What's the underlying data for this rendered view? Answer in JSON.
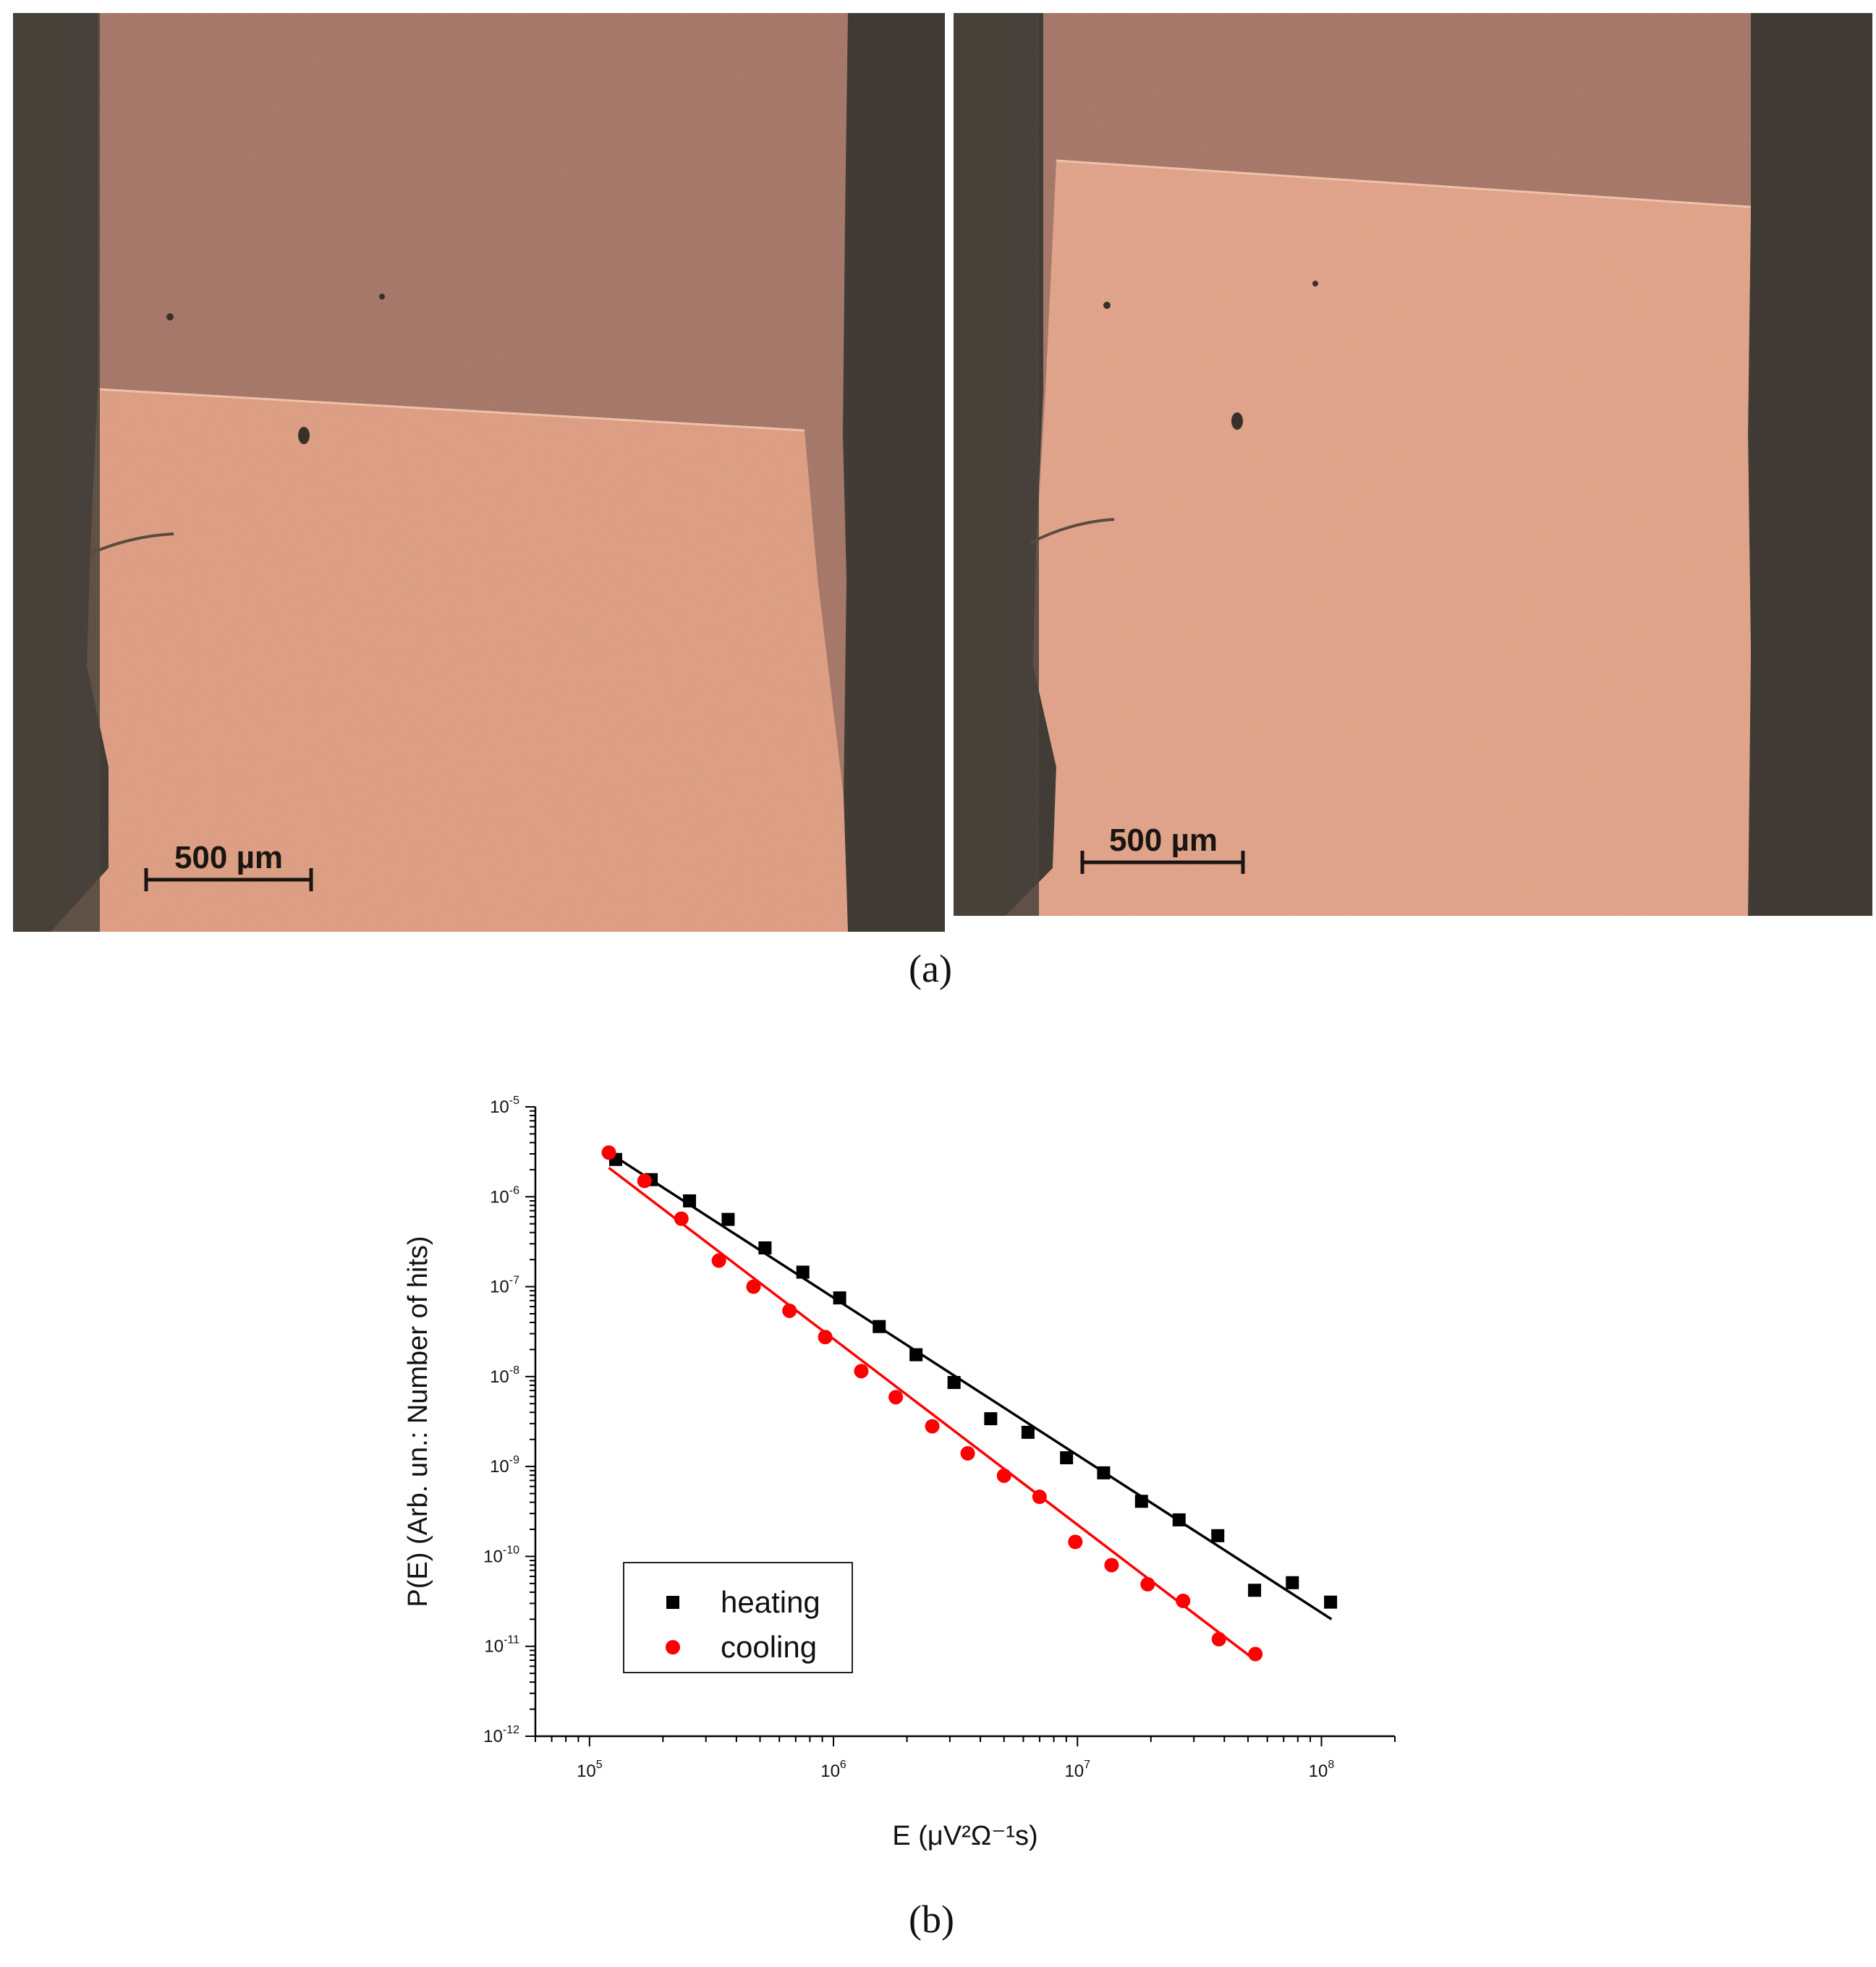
{
  "figure": {
    "panel_a_label": "(a)",
    "panel_b_label": "(b)"
  },
  "micrographs": [
    {
      "scale_bar_label": "500 µm"
    },
    {
      "scale_bar_label": "500 µm"
    }
  ],
  "colors": {
    "heating": "#000000",
    "cooling": "#ff0000",
    "sample_light": "#e2a085",
    "sample_dark": "#ab7d70",
    "background": "#4a433c"
  },
  "chart_data": {
    "type": "scatter",
    "xscale": "log",
    "yscale": "log",
    "xlabel": "E (μV²Ω⁻¹s)",
    "ylabel": "P(E) (Arb. un.: Number of hits)",
    "xlim": [
      60000,
      200000000
    ],
    "ylim": [
      1e-12,
      1e-05
    ],
    "x_ticks": [
      {
        "value": 100000,
        "base": "10",
        "exp": "5"
      },
      {
        "value": 1000000,
        "base": "10",
        "exp": "6"
      },
      {
        "value": 10000000,
        "base": "10",
        "exp": "7"
      },
      {
        "value": 100000000,
        "base": "10",
        "exp": "8"
      }
    ],
    "y_ticks": [
      {
        "value": 1e-05,
        "base": "10",
        "exp": "-5"
      },
      {
        "value": 1e-06,
        "base": "10",
        "exp": "-6"
      },
      {
        "value": 1e-07,
        "base": "10",
        "exp": "-7"
      },
      {
        "value": 1e-08,
        "base": "10",
        "exp": "-8"
      },
      {
        "value": 1e-09,
        "base": "10",
        "exp": "-9"
      },
      {
        "value": 1e-10,
        "base": "10",
        "exp": "-10"
      },
      {
        "value": 1e-11,
        "base": "10",
        "exp": "-11"
      },
      {
        "value": 1e-12,
        "base": "10",
        "exp": "-12"
      }
    ],
    "legend_position": "lower-left",
    "series": [
      {
        "name": "heating",
        "marker": "square",
        "color": "#000000",
        "x": [
          128000,
          179000,
          257000,
          370000,
          524000,
          749000,
          1060000,
          1540000,
          2180000,
          3120000,
          4410000,
          6270000,
          9020000,
          12800000,
          18300000,
          26100000,
          37600000,
          53200000,
          76000000,
          109000000
        ],
        "y": [
          2.6e-06,
          1.55e-06,
          9e-07,
          5.6e-07,
          2.7e-07,
          1.45e-07,
          7.5e-08,
          3.6e-08,
          1.75e-08,
          8.6e-09,
          3.4e-09,
          2.4e-09,
          1.25e-09,
          8.5e-10,
          4.1e-10,
          2.55e-10,
          1.7e-10,
          4.2e-11,
          5.1e-11,
          3.1e-11
        ],
        "fit": {
          "x": [
            120000,
            110000000
          ],
          "y": [
            3.1e-06,
            2e-11
          ]
        }
      },
      {
        "name": "cooling",
        "marker": "circle",
        "color": "#ff0000",
        "x": [
          120000,
          168000,
          238000,
          339000,
          470000,
          660000,
          925000,
          1300000,
          1800000,
          2540000,
          3550000,
          5000000,
          6990000,
          9800000,
          13800000,
          19400000,
          27100000,
          38000000,
          53600000
        ],
        "y": [
          3.1e-06,
          1.5e-06,
          5.7e-07,
          1.95e-07,
          1e-07,
          5.4e-08,
          2.75e-08,
          1.15e-08,
          5.9e-09,
          2.8e-09,
          1.4e-09,
          7.9e-10,
          4.6e-10,
          1.45e-10,
          8e-11,
          4.9e-11,
          3.2e-11,
          1.2e-11,
          8.2e-12
        ],
        "fit": {
          "x": [
            120000,
            53600000
          ],
          "y": [
            2.1e-06,
            7e-12
          ]
        }
      }
    ]
  }
}
